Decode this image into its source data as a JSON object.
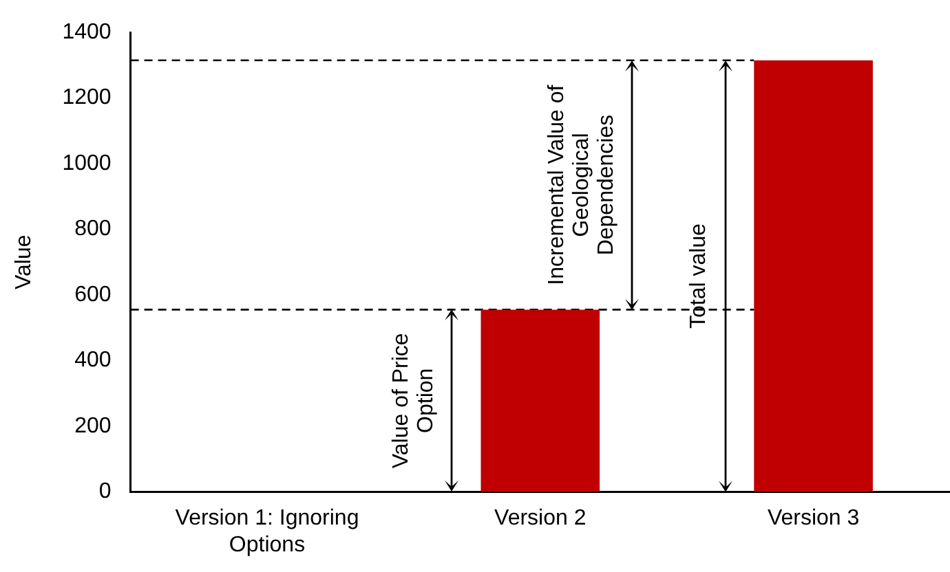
{
  "chart_data": {
    "type": "bar",
    "ylabel": "Value",
    "categories": [
      "Version 1: Ignoring Options",
      "Version 2",
      "Version 3"
    ],
    "values": [
      0,
      555,
      1315
    ],
    "color": "#c00000",
    "ylim": [
      0,
      1400
    ],
    "yticks": [
      0,
      200,
      400,
      600,
      800,
      1000,
      1200,
      1400
    ],
    "grid": false,
    "ref_lines": [
      {
        "axis": "y",
        "value": 555,
        "color": "#000000",
        "line_style": "dashed"
      },
      {
        "axis": "y",
        "value": 1315,
        "color": "#000000",
        "line_style": "dashed"
      }
    ],
    "annotations": [
      "Value of Price Option",
      "Incremental Value of Geological Dependencies",
      "Total value"
    ],
    "legend": false
  }
}
